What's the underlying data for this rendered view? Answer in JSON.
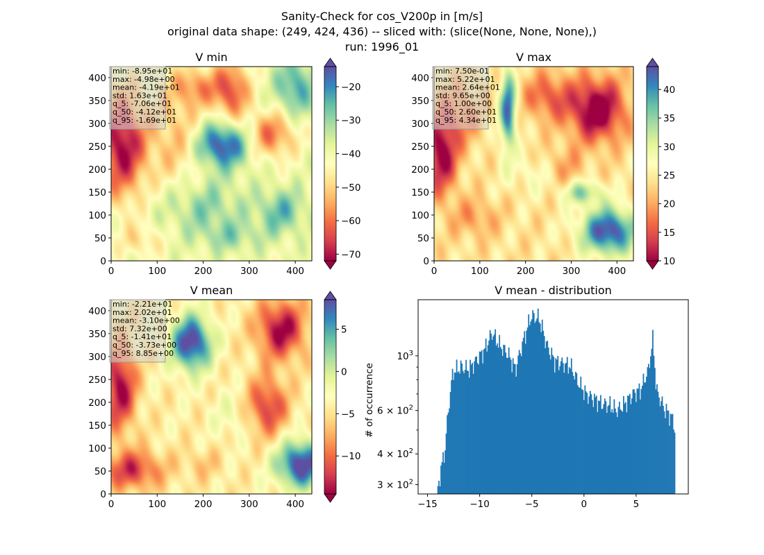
{
  "figure": {
    "title_lines": [
      "Sanity-Check for cos_V200p in [m/s]",
      "original data shape: (249, 424, 436) -- sliced with: (slice(None, None, None),)",
      "run: 1996_01"
    ]
  },
  "colormap": "Spectral",
  "chart_data": [
    {
      "type": "heatmap",
      "title": "V min",
      "xlim": [
        0,
        436
      ],
      "ylim": [
        0,
        424
      ],
      "xticks": [
        0,
        100,
        200,
        300,
        400
      ],
      "yticks": [
        0,
        50,
        100,
        150,
        200,
        250,
        300,
        350,
        400
      ],
      "colorbar": {
        "min": -72,
        "max": -14,
        "ticks": [
          -70,
          -60,
          -50,
          -40,
          -30,
          -20
        ],
        "extend": "both"
      },
      "stats": [
        "min: -8.95e+01",
        "max: -4.98e+00",
        "mean: -4.19e+01",
        "std: 1.63e+01",
        "q_5: -7.06e+01",
        "q_50: -4.12e+01",
        "q_95: -1.69e+01"
      ],
      "field": {
        "base": 0.55,
        "blobs": [
          {
            "x": 0.05,
            "y": 0.4,
            "sx": 0.12,
            "sy": 0.28,
            "a": -0.55
          },
          {
            "x": 0.33,
            "y": 0.37,
            "sx": 0.15,
            "sy": 0.28,
            "a": -0.22
          },
          {
            "x": 0.42,
            "y": 0.1,
            "sx": 0.12,
            "sy": 0.1,
            "a": -0.25
          },
          {
            "x": 0.6,
            "y": 0.12,
            "sx": 0.09,
            "sy": 0.16,
            "a": -0.4
          },
          {
            "x": 0.8,
            "y": 0.35,
            "sx": 0.12,
            "sy": 0.12,
            "a": -0.35
          },
          {
            "x": 0.55,
            "y": 0.4,
            "sx": 0.14,
            "sy": 0.12,
            "a": 0.48
          },
          {
            "x": 0.92,
            "y": 0.1,
            "sx": 0.1,
            "sy": 0.15,
            "a": 0.3
          },
          {
            "x": 0.45,
            "y": 0.72,
            "sx": 0.2,
            "sy": 0.15,
            "a": 0.2
          },
          {
            "x": 0.85,
            "y": 0.75,
            "sx": 0.12,
            "sy": 0.12,
            "a": 0.25
          },
          {
            "x": 0.15,
            "y": 0.9,
            "sx": 0.1,
            "sy": 0.08,
            "a": -0.15
          },
          {
            "x": 0.6,
            "y": 0.88,
            "sx": 0.15,
            "sy": 0.08,
            "a": 0.15
          }
        ]
      }
    },
    {
      "type": "heatmap",
      "title": "V max",
      "xlim": [
        0,
        436
      ],
      "ylim": [
        0,
        424
      ],
      "xticks": [
        0,
        100,
        200,
        300,
        400
      ],
      "yticks": [
        0,
        50,
        100,
        150,
        200,
        250,
        300,
        350,
        400
      ],
      "colorbar": {
        "min": 10,
        "max": 44,
        "ticks": [
          10,
          15,
          20,
          25,
          30,
          35,
          40
        ],
        "extend": "both"
      },
      "stats": [
        "min: 7.50e-01",
        "max: 5.22e+01",
        "mean: 2.64e+01",
        "std: 9.65e+00",
        "q_5: 1.00e+00",
        "q_50: 2.60e+01",
        "q_95: 4.34e+01"
      ],
      "field": {
        "base": 0.42,
        "blobs": [
          {
            "x": 0.03,
            "y": 0.45,
            "sx": 0.08,
            "sy": 0.2,
            "a": -0.45
          },
          {
            "x": 0.13,
            "y": 0.25,
            "sx": 0.1,
            "sy": 0.15,
            "a": -0.2
          },
          {
            "x": 0.37,
            "y": 0.22,
            "sx": 0.04,
            "sy": 0.2,
            "a": 0.55
          },
          {
            "x": 0.57,
            "y": 0.15,
            "sx": 0.12,
            "sy": 0.12,
            "a": -0.25
          },
          {
            "x": 0.82,
            "y": 0.22,
            "sx": 0.14,
            "sy": 0.16,
            "a": -0.5
          },
          {
            "x": 0.65,
            "y": 0.52,
            "sx": 0.1,
            "sy": 0.1,
            "a": -0.15
          },
          {
            "x": 0.88,
            "y": 0.85,
            "sx": 0.14,
            "sy": 0.12,
            "a": 0.6
          },
          {
            "x": 0.75,
            "y": 0.65,
            "sx": 0.1,
            "sy": 0.06,
            "a": 0.3
          },
          {
            "x": 0.2,
            "y": 0.78,
            "sx": 0.12,
            "sy": 0.1,
            "a": -0.15
          },
          {
            "x": 0.5,
            "y": 0.55,
            "sx": 0.15,
            "sy": 0.1,
            "a": 0.1
          }
        ]
      }
    },
    {
      "type": "heatmap",
      "title": "V mean",
      "xlim": [
        0,
        436
      ],
      "ylim": [
        0,
        424
      ],
      "xticks": [
        0,
        100,
        200,
        300,
        400
      ],
      "yticks": [
        0,
        50,
        100,
        150,
        200,
        250,
        300,
        350,
        400
      ],
      "colorbar": {
        "min": -14.5,
        "max": 8.5,
        "ticks": [
          -10,
          -5,
          0,
          5
        ],
        "extend": "both"
      },
      "stats": [
        "min: -2.21e+01",
        "max: 2.02e+01",
        "mean: -3.10e+00",
        "std: 7.32e+00",
        "q_5: -1.41e+01",
        "q_50: -3.73e+00",
        "q_95: 8.85e+00"
      ],
      "field": {
        "base": 0.45,
        "blobs": [
          {
            "x": 0.4,
            "y": 0.22,
            "sx": 0.1,
            "sy": 0.14,
            "a": 0.6
          },
          {
            "x": 0.04,
            "y": 0.45,
            "sx": 0.08,
            "sy": 0.22,
            "a": -0.45
          },
          {
            "x": 0.1,
            "y": 0.88,
            "sx": 0.15,
            "sy": 0.1,
            "a": -0.35
          },
          {
            "x": 0.85,
            "y": 0.15,
            "sx": 0.12,
            "sy": 0.15,
            "a": -0.45
          },
          {
            "x": 0.78,
            "y": 0.55,
            "sx": 0.1,
            "sy": 0.15,
            "a": -0.35
          },
          {
            "x": 0.95,
            "y": 0.85,
            "sx": 0.12,
            "sy": 0.12,
            "a": 0.6
          },
          {
            "x": 0.6,
            "y": 0.6,
            "sx": 0.1,
            "sy": 0.12,
            "a": 0.1
          },
          {
            "x": 0.45,
            "y": 0.85,
            "sx": 0.1,
            "sy": 0.08,
            "a": -0.1
          }
        ]
      }
    },
    {
      "type": "bar",
      "title": "V mean - distribution",
      "ylabel": "# of occurrence",
      "yscale": "log",
      "xlim": [
        -15.9,
        10.0
      ],
      "ylim": [
        275,
        1690
      ],
      "xticks": [
        -15,
        -10,
        -5,
        0,
        5
      ],
      "yticks": [
        {
          "value": 1000,
          "label": "10^3"
        },
        {
          "value": 600,
          "label": "6 × 10^2"
        },
        {
          "value": 400,
          "label": "4 × 10^2"
        },
        {
          "value": 300,
          "label": "3 × 10^2"
        }
      ],
      "bar_color": "#1f77b4",
      "bins": {
        "x": [
          -14.06,
          -13.31,
          -12.56,
          -11.81,
          -11.06,
          -10.31,
          -9.56,
          -8.81,
          -8.06,
          -7.31,
          -6.56,
          -5.81,
          -5.06,
          -4.31,
          -3.56,
          -2.81,
          -2.06,
          -1.31,
          -0.56,
          0.19,
          0.94,
          1.69,
          2.44,
          3.19,
          3.94,
          4.69,
          5.44,
          6.19,
          6.59,
          6.94,
          7.69,
          8.44,
          8.7
        ],
        "y": [
          280,
          420,
          860,
          900,
          880,
          960,
          1050,
          1240,
          1100,
          1020,
          880,
          1150,
          1450,
          1420,
          1100,
          950,
          930,
          910,
          780,
          700,
          670,
          640,
          630,
          600,
          640,
          700,
          730,
          880,
          1160,
          720,
          610,
          560,
          510
        ]
      }
    }
  ]
}
